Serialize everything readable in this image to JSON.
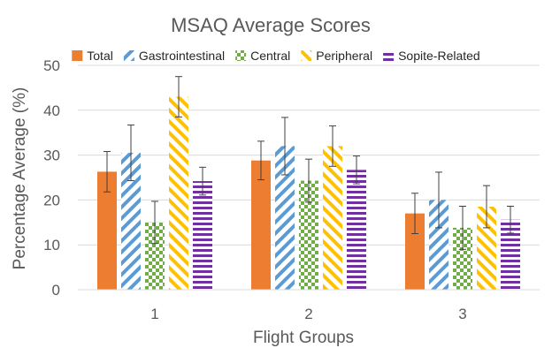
{
  "chart_data": {
    "type": "bar",
    "title": "MSAQ Average Scores",
    "xlabel": "Flight Groups",
    "ylabel": "Percentage Average (%)",
    "ylim": [
      0,
      50
    ],
    "yticks": [
      0,
      10,
      20,
      30,
      40,
      50
    ],
    "grid": true,
    "legend_position": "top",
    "categories": [
      "1",
      "2",
      "3"
    ],
    "series": [
      {
        "name": "Total",
        "color": "#ED7D31",
        "pattern": "solid",
        "values": [
          26.3,
          28.8,
          17.0
        ],
        "error": [
          4.5,
          4.3,
          4.5
        ]
      },
      {
        "name": "Gastrointestinal",
        "color": "#5B9BD5",
        "pattern": "wide-downward-diagonal",
        "values": [
          30.5,
          32.0,
          20.0
        ],
        "error": [
          6.2,
          6.4,
          6.2
        ]
      },
      {
        "name": "Central",
        "color": "#70AD47",
        "pattern": "checkerboard",
        "values": [
          15.0,
          24.3,
          13.8
        ],
        "error": [
          4.7,
          4.8,
          4.8
        ]
      },
      {
        "name": "Peripheral",
        "color": "#FFC000",
        "pattern": "wide-upward-diagonal",
        "values": [
          43.0,
          32.0,
          18.5
        ],
        "error": [
          4.5,
          4.5,
          4.7
        ]
      },
      {
        "name": "Sopite-Related",
        "color": "#7030A0",
        "pattern": "horizontal-stripes",
        "values": [
          24.2,
          26.7,
          15.6
        ],
        "error": [
          3.1,
          3.1,
          3.0
        ]
      }
    ]
  }
}
